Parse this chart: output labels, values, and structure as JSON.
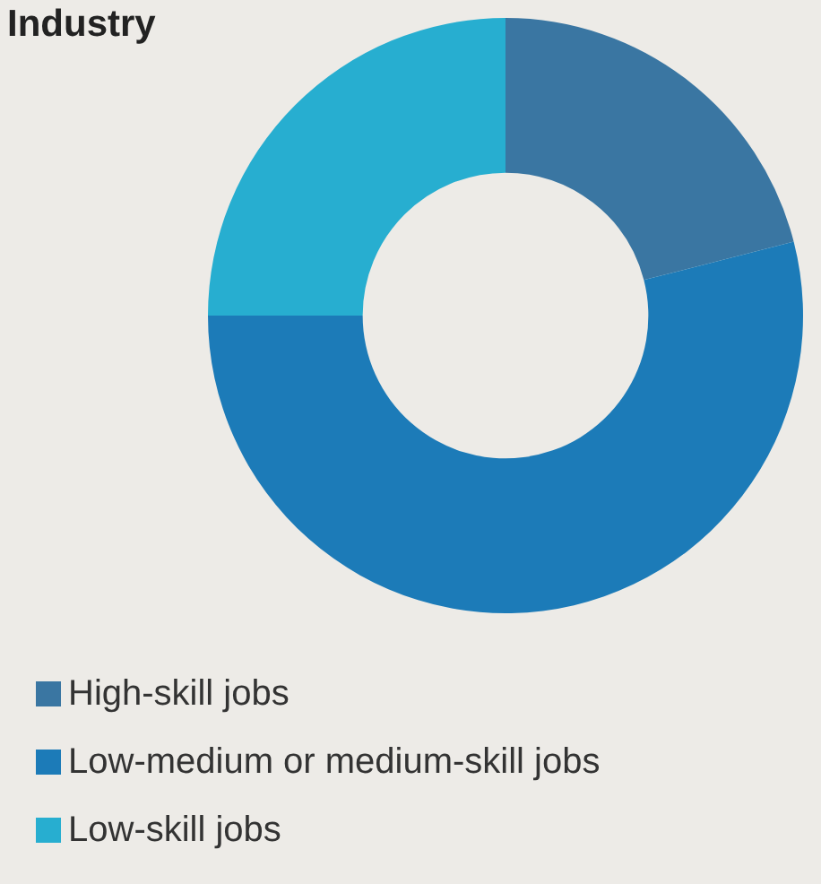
{
  "chart_data": {
    "type": "donut",
    "title": "Industry",
    "categories": [
      "High-skill jobs",
      "Low-medium or medium-skill jobs",
      "Low-skill jobs"
    ],
    "values": [
      21,
      54,
      25
    ],
    "colors": [
      "#3a76a2",
      "#1c7bb8",
      "#27aed0"
    ],
    "legend": "bottom"
  }
}
